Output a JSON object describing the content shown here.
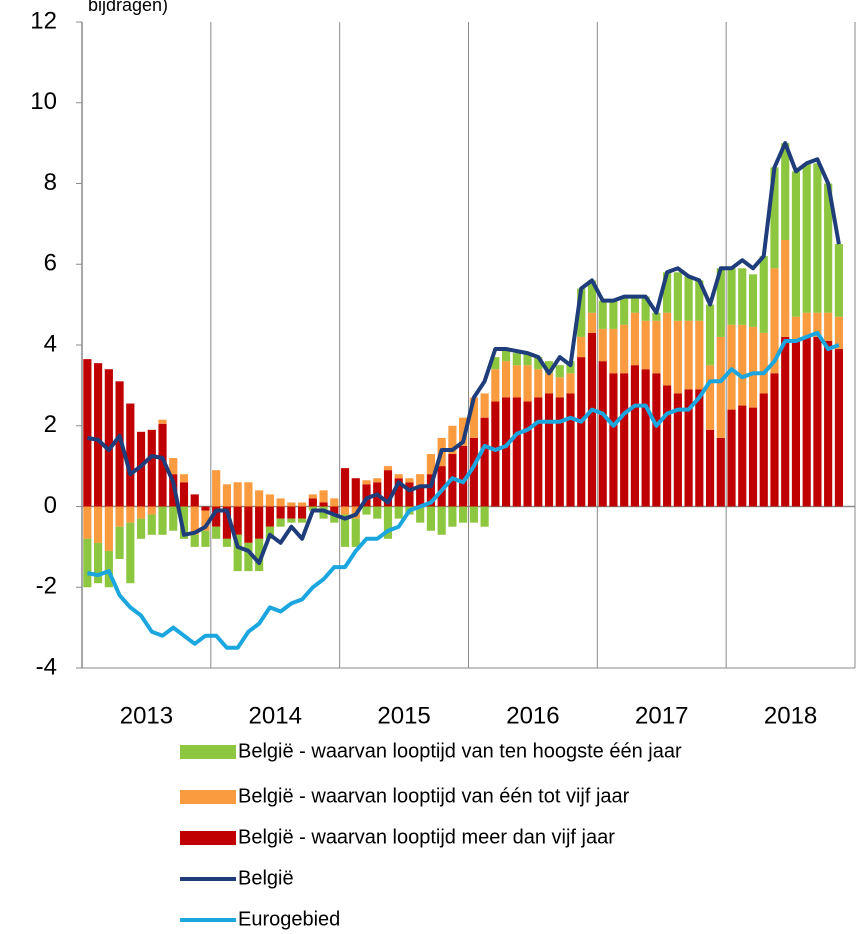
{
  "chart_data": {
    "type": "bar",
    "title": "bijdragen)",
    "categories": [
      null,
      null,
      null,
      null,
      null,
      null,
      "2013",
      null,
      null,
      null,
      null,
      null,
      null,
      null,
      null,
      null,
      null,
      null,
      "2014",
      null,
      null,
      null,
      null,
      null,
      null,
      null,
      null,
      null,
      null,
      null,
      "2015",
      null,
      null,
      null,
      null,
      null,
      null,
      null,
      null,
      null,
      null,
      null,
      "2016",
      null,
      null,
      null,
      null,
      null,
      null,
      null,
      null,
      null,
      null,
      null,
      "2017",
      null,
      null,
      null,
      null,
      null,
      null,
      null,
      null,
      null,
      null,
      null,
      "2018",
      null,
      null,
      null,
      null
    ],
    "ylim": [
      -4,
      12
    ],
    "yticks": [
      -4,
      -2,
      0,
      2,
      4,
      6,
      8,
      10,
      12
    ],
    "xgrid": true,
    "series": [
      {
        "name": "België - waarvan looptijd van ten hoogste één jaar",
        "kind": "bar",
        "color": "#8dc63f",
        "values": [
          -1.2,
          -1.0,
          -0.9,
          -0.8,
          -1.5,
          -0.5,
          -0.5,
          -0.7,
          -0.6,
          -0.8,
          -0.3,
          -0.4,
          -0.3,
          -0.2,
          -0.9,
          -0.7,
          -0.8,
          -0.3,
          -0.2,
          -0.1,
          -0.1,
          -0.1,
          -0.3,
          -0.2,
          -0.8,
          -0.7,
          -0.2,
          -0.3,
          -0.8,
          -0.3,
          -0.2,
          -0.4,
          -0.6,
          -0.7,
          -0.5,
          -0.4,
          -0.4,
          -0.5,
          0.3,
          0.3,
          0.3,
          0.3,
          0.3,
          0.3,
          0.3,
          0.3,
          1.2,
          0.8,
          0.7,
          0.7,
          0.7,
          0.4,
          0.6,
          0.2,
          1.0,
          1.2,
          1.1,
          1.0,
          1.5,
          1.7,
          1.4,
          1.4,
          1.3,
          1.9,
          2.5,
          2.4,
          3.6,
          3.7,
          3.7,
          3.2,
          1.8
        ]
      },
      {
        "name": "België - waarvan looptijd van één tot vijf jaar",
        "kind": "bar",
        "color": "#fb9b3f",
        "values": [
          -0.8,
          -0.9,
          -1.1,
          -0.5,
          -0.4,
          -0.3,
          -0.2,
          0.1,
          0.4,
          0.2,
          -0.7,
          -0.5,
          0.9,
          0.55,
          0.6,
          0.6,
          0.4,
          0.3,
          0.2,
          0.1,
          0.1,
          0.1,
          0.3,
          0.2,
          -0.2,
          -0.3,
          0.1,
          0.1,
          0.1,
          0.1,
          0.1,
          0.3,
          0.5,
          0.7,
          0.7,
          0.7,
          1.0,
          0.6,
          0.8,
          0.9,
          0.8,
          0.9,
          0.7,
          0.5,
          0.5,
          0.5,
          0.5,
          0.5,
          0.8,
          1.1,
          1.2,
          1.3,
          1.2,
          1.3,
          1.8,
          1.8,
          1.7,
          1.7,
          1.6,
          2.5,
          2.1,
          2.0,
          2.0,
          1.5,
          2.6,
          2.4,
          0.6,
          0.6,
          0.6,
          0.7,
          0.8
        ]
      },
      {
        "name": "België - waarvan looptijd meer dan vijf jaar",
        "kind": "bar",
        "color": "#c00000",
        "values": [
          3.65,
          3.55,
          3.4,
          3.1,
          2.55,
          1.85,
          1.9,
          2.05,
          0.8,
          0.6,
          0.3,
          -0.1,
          -0.5,
          -0.8,
          -0.7,
          -0.9,
          -0.8,
          -0.5,
          -0.3,
          -0.3,
          -0.3,
          0.2,
          0.1,
          -0.2,
          0.95,
          0.7,
          0.55,
          0.6,
          0.9,
          0.7,
          0.6,
          0.5,
          0.8,
          1.0,
          1.3,
          1.5,
          1.7,
          2.2,
          2.6,
          2.7,
          2.7,
          2.6,
          2.7,
          2.8,
          2.7,
          2.8,
          3.7,
          4.3,
          3.6,
          3.3,
          3.3,
          3.5,
          3.4,
          3.3,
          3.0,
          2.8,
          2.9,
          2.9,
          1.9,
          1.7,
          2.4,
          2.5,
          2.45,
          2.8,
          3.3,
          4.2,
          4.1,
          4.2,
          4.2,
          4.1,
          3.9
        ]
      },
      {
        "name": "België",
        "kind": "line",
        "color": "#1f3d7a",
        "values": [
          1.7,
          1.65,
          1.4,
          1.75,
          0.8,
          1.0,
          1.25,
          1.2,
          0.6,
          -0.7,
          -0.65,
          -0.5,
          -0.1,
          -0.1,
          -1.0,
          -1.1,
          -1.4,
          -0.7,
          -0.9,
          -0.5,
          -0.8,
          -0.1,
          -0.1,
          -0.2,
          -0.3,
          -0.2,
          0.2,
          0.3,
          0.1,
          0.6,
          0.4,
          0.5,
          0.5,
          1.4,
          1.4,
          1.6,
          2.7,
          3.1,
          3.9,
          3.9,
          3.85,
          3.8,
          3.7,
          3.3,
          3.7,
          3.5,
          5.4,
          5.6,
          5.1,
          5.1,
          5.2,
          5.2,
          5.2,
          4.8,
          5.8,
          5.9,
          5.7,
          5.6,
          5.0,
          5.9,
          5.9,
          6.1,
          5.9,
          6.2,
          8.4,
          9.0,
          8.3,
          8.5,
          8.6,
          8.0,
          6.5
        ]
      },
      {
        "name": "Eurogebied",
        "kind": "line",
        "color": "#1ba6df",
        "values": [
          -1.65,
          -1.7,
          -1.6,
          -2.2,
          -2.5,
          -2.7,
          -3.1,
          -3.2,
          -3.0,
          -3.2,
          -3.4,
          -3.2,
          -3.2,
          -3.5,
          -3.5,
          -3.1,
          -2.9,
          -2.5,
          -2.6,
          -2.4,
          -2.3,
          -2.0,
          -1.8,
          -1.5,
          -1.5,
          -1.1,
          -0.8,
          -0.8,
          -0.6,
          -0.5,
          -0.1,
          0.0,
          0.1,
          0.4,
          0.7,
          0.6,
          1.0,
          1.5,
          1.4,
          1.5,
          1.8,
          1.9,
          2.1,
          2.1,
          2.1,
          2.2,
          2.1,
          2.4,
          2.3,
          2.0,
          2.3,
          2.5,
          2.5,
          2.0,
          2.3,
          2.4,
          2.4,
          2.7,
          3.1,
          3.1,
          3.4,
          3.2,
          3.3,
          3.3,
          3.6,
          4.1,
          4.1,
          4.2,
          4.3,
          3.9,
          4.0
        ]
      }
    ]
  }
}
